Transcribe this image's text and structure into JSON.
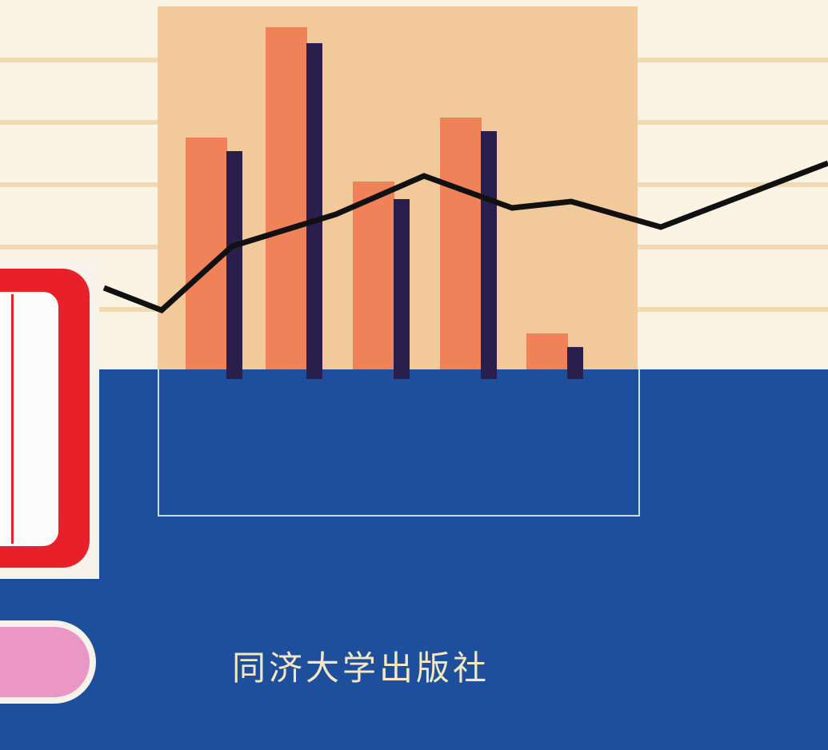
{
  "publisher": "同济大学出版社",
  "colors": {
    "background_stripe": "#fbf3e3",
    "stripe_line": "#f1d9b4",
    "panel": "#f2c99a",
    "blue_band": "#1d4f9c",
    "bar_light": "#f0825a",
    "bar_dark": "#2a1f4c",
    "trend_line": "#111111",
    "label_red": "#e8202a",
    "pink_tab": "#ea97c6",
    "publisher_text": "#f4e7c3"
  },
  "chart_data": {
    "type": "bar",
    "categories": [
      "",
      "",
      "",
      "",
      ""
    ],
    "series": [
      {
        "values": [
          290,
          428,
          235,
          315,
          45
        ]
      },
      {
        "values": [
          285,
          420,
          225,
          310,
          40
        ]
      }
    ],
    "trend_line": [
      0.25,
      0.18,
      0.38,
      0.48,
      0.6,
      0.5,
      0.52,
      0.44,
      0.64
    ],
    "ylim": [
      0,
      460
    ],
    "grid": false
  }
}
